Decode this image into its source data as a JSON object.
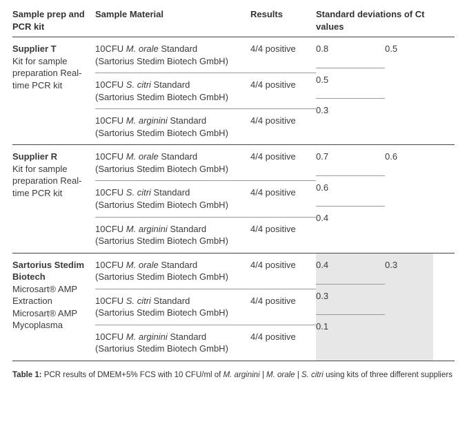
{
  "header": {
    "col1": "Sample prep and PCR kit",
    "col2": "Sample Material",
    "col3": "Results",
    "col4": "Standard deviations of Ct values"
  },
  "groups": [
    {
      "supplier_name": "Supplier T",
      "supplier_desc": "Kit for sample preparation Real-time PCR kit",
      "highlight": false,
      "sd_group": "0.5",
      "rows": [
        {
          "material_prefix": "10CFU ",
          "material_species": "M. orale",
          "material_suffix": " Standard",
          "material_sub": "(Sartorius Stedim Biotech GmbH)",
          "result": "4/4 positive",
          "sd": "0.8"
        },
        {
          "material_prefix": "10CFU ",
          "material_species": "S. citri",
          "material_suffix": " Standard",
          "material_sub": "(Sartorius Stedim Biotech GmbH)",
          "result": "4/4 positive",
          "sd": "0.5"
        },
        {
          "material_prefix": "10CFU ",
          "material_species": "M. arginini",
          "material_suffix": " Standard",
          "material_sub": "(Sartorius Stedim Biotech GmbH)",
          "result": "4/4 positive",
          "sd": "0.3"
        }
      ]
    },
    {
      "supplier_name": "Supplier R",
      "supplier_desc": "Kit for sample preparation Real-time PCR kit",
      "highlight": false,
      "sd_group": "0.6",
      "rows": [
        {
          "material_prefix": "10CFU ",
          "material_species": "M. orale",
          "material_suffix": " Standard",
          "material_sub": "(Sartorius Stedim Biotech GmbH)",
          "result": "4/4 positive",
          "sd": "0.7"
        },
        {
          "material_prefix": "10CFU ",
          "material_species": "S. citri",
          "material_suffix": " Standard",
          "material_sub": "(Sartorius Stedim Biotech GmbH)",
          "result": "4/4 positive",
          "sd": "0.6"
        },
        {
          "material_prefix": "10CFU ",
          "material_species": "M. arginini",
          "material_suffix": " Standard",
          "material_sub": "(Sartorius Stedim Biotech GmbH)",
          "result": "4/4 positive",
          "sd": "0.4"
        }
      ]
    },
    {
      "supplier_name": "Sartorius Stedim Biotech",
      "supplier_desc": "Microsart® AMP Extraction Microsart® AMP Mycoplasma",
      "highlight": true,
      "sd_group": "0.3",
      "rows": [
        {
          "material_prefix": "10CFU ",
          "material_species": "M. orale",
          "material_suffix": " Standard",
          "material_sub": "(Sartorius Stedim Biotech GmbH)",
          "result": "4/4 positive",
          "sd": "0.4"
        },
        {
          "material_prefix": "10CFU ",
          "material_species": "S. citri",
          "material_suffix": " Standard",
          "material_sub": "(Sartorius Stedim Biotech GmbH)",
          "result": "4/4 positive",
          "sd": "0.3"
        },
        {
          "material_prefix": "10CFU ",
          "material_species": "M. arginini",
          "material_suffix": " Standard",
          "material_sub": "(Sartorius Stedim Biotech GmbH)",
          "result": "4/4 positive",
          "sd": "0.1"
        }
      ]
    }
  ],
  "caption": {
    "label": "Table 1:",
    "text_a": " PCR results of DMEM+5% FCS with 10 CFU/ml of ",
    "species": "M. arginini | M. orale | S. citri",
    "text_b": " using kits of three different suppliers"
  },
  "colors": {
    "border": "#444444",
    "subborder": "#999999",
    "highlight_bg": "#e7e7e7",
    "text": "#3a3a3a"
  }
}
